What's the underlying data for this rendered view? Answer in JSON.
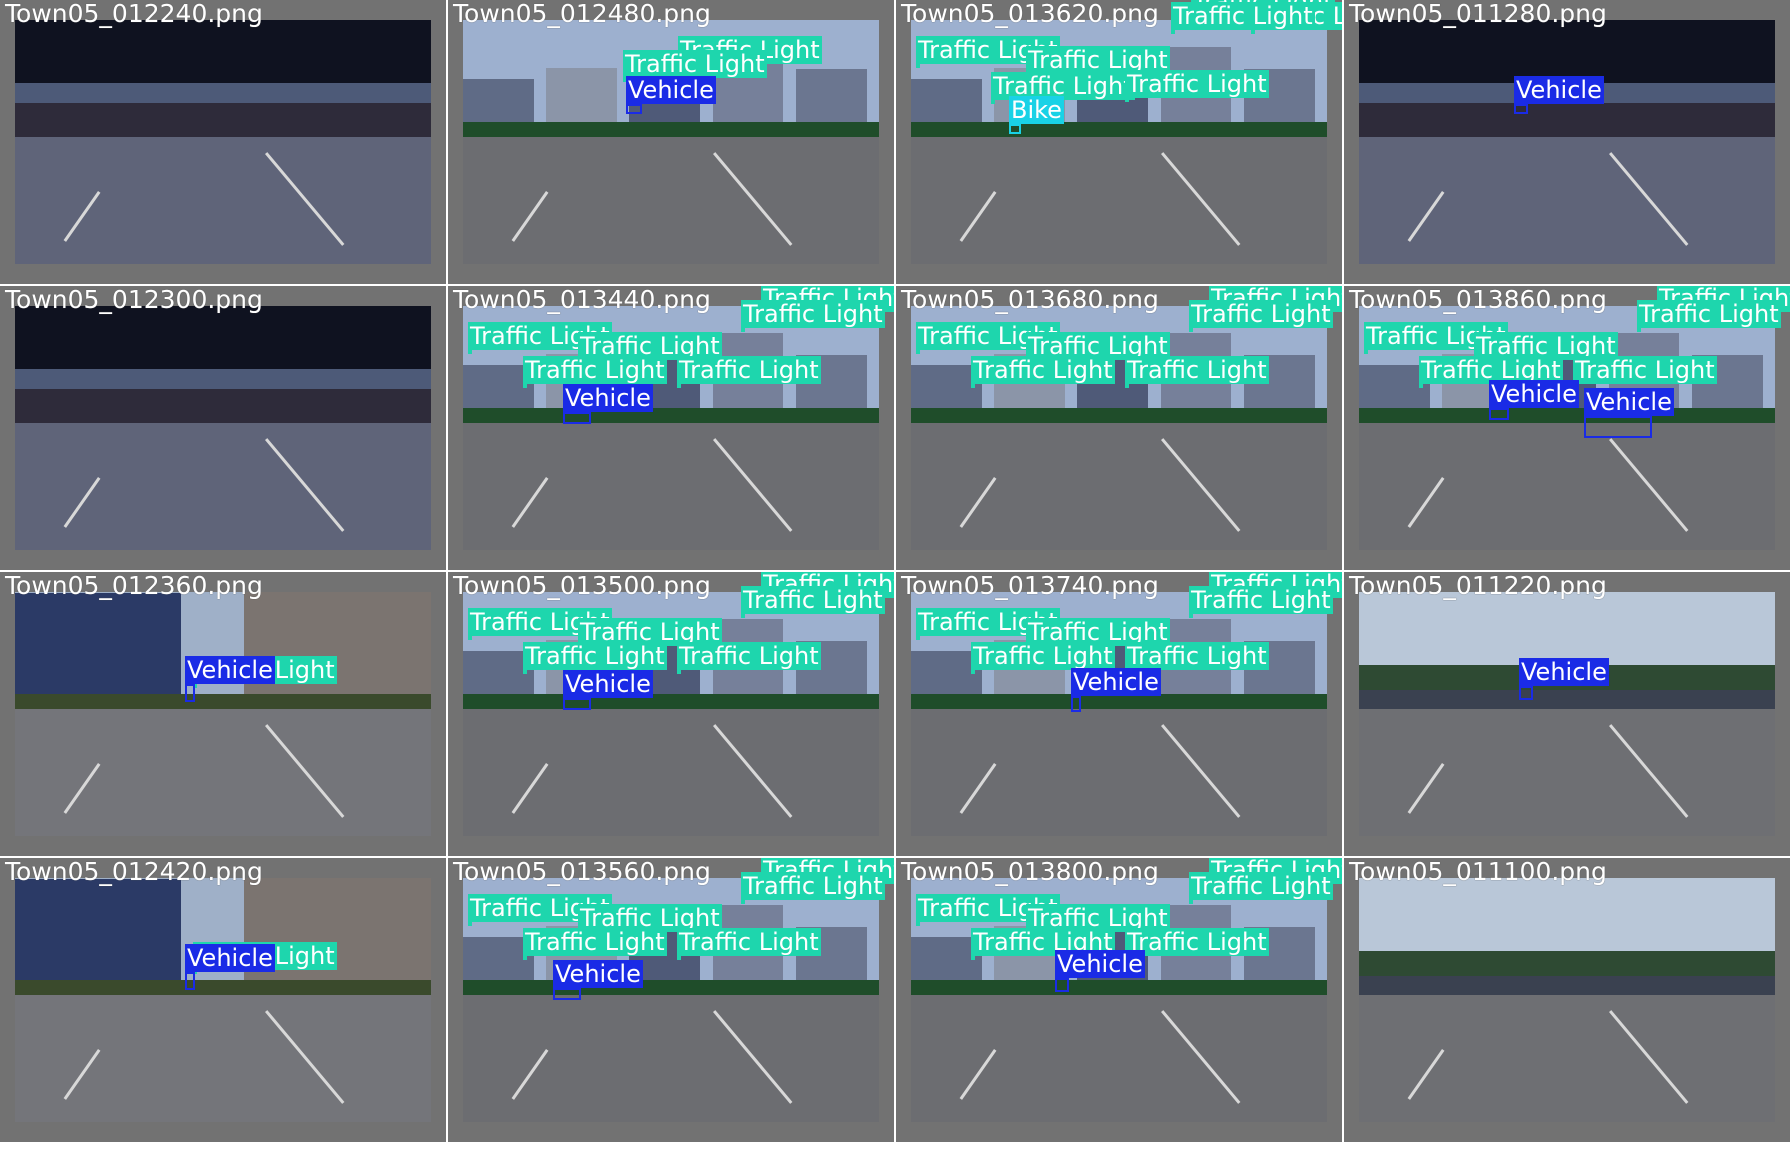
{
  "colors": {
    "grid_background": "#727272",
    "traffic_light": "#1ed6ad",
    "vehicle": "#1a2be6",
    "bike": "#19d2e6"
  },
  "tiles": [
    {
      "filename": "Town05_012240.png",
      "scene": "overpass",
      "detections": []
    },
    {
      "filename": "Town05_012480.png",
      "scene": "city",
      "detections": [
        {
          "label": "Traffic Light",
          "class": "traffic_light"
        },
        {
          "label": "Traffic Light",
          "class": "traffic_light"
        },
        {
          "label": "Vehicle",
          "class": "vehicle"
        }
      ]
    },
    {
      "filename": "Town05_013620.png",
      "scene": "city",
      "detections": [
        {
          "label": "Traffic Light",
          "class": "traffic_light"
        },
        {
          "label": "Traffic Light",
          "class": "traffic_light"
        },
        {
          "label": "Traffic Light",
          "class": "traffic_light"
        },
        {
          "label": "Traffic Light",
          "class": "traffic_light"
        },
        {
          "label": "Traffic Light",
          "class": "traffic_light"
        },
        {
          "label": "Traffic Light",
          "class": "traffic_light"
        },
        {
          "label": "Traffic Light",
          "class": "traffic_light"
        },
        {
          "label": "Bike",
          "class": "bike"
        }
      ]
    },
    {
      "filename": "Town05_011280.png",
      "scene": "overpass",
      "detections": [
        {
          "label": "Vehicle",
          "class": "vehicle"
        }
      ]
    },
    {
      "filename": "Town05_012300.png",
      "scene": "overpass",
      "detections": []
    },
    {
      "filename": "Town05_013440.png",
      "scene": "city",
      "detections": [
        {
          "label": "Traffic Light",
          "class": "traffic_light"
        },
        {
          "label": "Traffic Light",
          "class": "traffic_light"
        },
        {
          "label": "Traffic Light",
          "class": "traffic_light"
        },
        {
          "label": "Traffic Light",
          "class": "traffic_light"
        },
        {
          "label": "Traffic Light",
          "class": "traffic_light"
        },
        {
          "label": "Traffic Light",
          "class": "traffic_light"
        },
        {
          "label": "Traffic Light",
          "class": "traffic_light"
        },
        {
          "label": "Vehicle",
          "class": "vehicle"
        }
      ]
    },
    {
      "filename": "Town05_013680.png",
      "scene": "city",
      "detections": [
        {
          "label": "Traffic Light",
          "class": "traffic_light"
        },
        {
          "label": "Traffic Light",
          "class": "traffic_light"
        },
        {
          "label": "Traffic Light",
          "class": "traffic_light"
        },
        {
          "label": "Traffic Light",
          "class": "traffic_light"
        },
        {
          "label": "Traffic Light",
          "class": "traffic_light"
        },
        {
          "label": "Traffic Light",
          "class": "traffic_light"
        },
        {
          "label": "Traffic Light",
          "class": "traffic_light"
        }
      ]
    },
    {
      "filename": "Town05_013860.png",
      "scene": "city",
      "detections": [
        {
          "label": "Traffic Light",
          "class": "traffic_light"
        },
        {
          "label": "Traffic Light",
          "class": "traffic_light"
        },
        {
          "label": "Traffic Light",
          "class": "traffic_light"
        },
        {
          "label": "Traffic Light",
          "class": "traffic_light"
        },
        {
          "label": "Traffic Light",
          "class": "traffic_light"
        },
        {
          "label": "Traffic Light",
          "class": "traffic_light"
        },
        {
          "label": "Traffic Light",
          "class": "traffic_light"
        },
        {
          "label": "Vehicle",
          "class": "vehicle"
        },
        {
          "label": "Vehicle",
          "class": "vehicle"
        }
      ]
    },
    {
      "filename": "Town05_012360.png",
      "scene": "stop",
      "detections": [
        {
          "label": "Traffic Light",
          "class": "traffic_light"
        },
        {
          "label": "Vehicle",
          "class": "vehicle"
        }
      ]
    },
    {
      "filename": "Town05_013500.png",
      "scene": "city",
      "detections": [
        {
          "label": "Traffic Light",
          "class": "traffic_light"
        },
        {
          "label": "Traffic Light",
          "class": "traffic_light"
        },
        {
          "label": "Traffic Light",
          "class": "traffic_light"
        },
        {
          "label": "Traffic Light",
          "class": "traffic_light"
        },
        {
          "label": "Traffic Light",
          "class": "traffic_light"
        },
        {
          "label": "Traffic Light",
          "class": "traffic_light"
        },
        {
          "label": "Traffic Light",
          "class": "traffic_light"
        },
        {
          "label": "Vehicle",
          "class": "vehicle"
        }
      ]
    },
    {
      "filename": "Town05_013740.png",
      "scene": "city",
      "detections": [
        {
          "label": "Traffic Light",
          "class": "traffic_light"
        },
        {
          "label": "Traffic Light",
          "class": "traffic_light"
        },
        {
          "label": "Traffic Light",
          "class": "traffic_light"
        },
        {
          "label": "Traffic Light",
          "class": "traffic_light"
        },
        {
          "label": "Traffic Light",
          "class": "traffic_light"
        },
        {
          "label": "Traffic Light",
          "class": "traffic_light"
        },
        {
          "label": "Traffic Light",
          "class": "traffic_light"
        },
        {
          "label": "Vehicle",
          "class": "vehicle"
        }
      ]
    },
    {
      "filename": "Town05_011220.png",
      "scene": "park",
      "detections": [
        {
          "label": "Vehicle",
          "class": "vehicle"
        }
      ]
    },
    {
      "filename": "Town05_012420.png",
      "scene": "stop",
      "detections": [
        {
          "label": "Traffic Light",
          "class": "traffic_light"
        },
        {
          "label": "Vehicle",
          "class": "vehicle"
        }
      ]
    },
    {
      "filename": "Town05_013560.png",
      "scene": "city",
      "detections": [
        {
          "label": "Traffic Light",
          "class": "traffic_light"
        },
        {
          "label": "Traffic Light",
          "class": "traffic_light"
        },
        {
          "label": "Traffic Light",
          "class": "traffic_light"
        },
        {
          "label": "Traffic Light",
          "class": "traffic_light"
        },
        {
          "label": "Traffic Light",
          "class": "traffic_light"
        },
        {
          "label": "Traffic Light",
          "class": "traffic_light"
        },
        {
          "label": "Traffic Light",
          "class": "traffic_light"
        },
        {
          "label": "Vehicle",
          "class": "vehicle"
        }
      ]
    },
    {
      "filename": "Town05_013800.png",
      "scene": "city",
      "detections": [
        {
          "label": "Traffic Light",
          "class": "traffic_light"
        },
        {
          "label": "Traffic Light",
          "class": "traffic_light"
        },
        {
          "label": "Traffic Light",
          "class": "traffic_light"
        },
        {
          "label": "Traffic Light",
          "class": "traffic_light"
        },
        {
          "label": "Traffic Light",
          "class": "traffic_light"
        },
        {
          "label": "Traffic Light",
          "class": "traffic_light"
        },
        {
          "label": "Traffic Light",
          "class": "traffic_light"
        },
        {
          "label": "Vehicle",
          "class": "vehicle"
        }
      ]
    },
    {
      "filename": "Town05_011100.png",
      "scene": "park",
      "detections": []
    }
  ]
}
